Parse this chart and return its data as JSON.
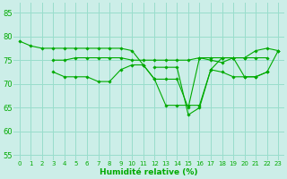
{
  "title": "",
  "xlabel": "Humidité relative (%)",
  "ylabel": "",
  "bg_color": "#cceee8",
  "grid_color": "#99ddcc",
  "line_color": "#00aa00",
  "marker_color": "#00aa00",
  "xlim": [
    -0.5,
    23.5
  ],
  "ylim": [
    54,
    87
  ],
  "yticks": [
    55,
    60,
    65,
    70,
    75,
    80,
    85
  ],
  "xticks": [
    0,
    1,
    2,
    3,
    4,
    5,
    6,
    7,
    8,
    9,
    10,
    11,
    12,
    13,
    14,
    15,
    16,
    17,
    18,
    19,
    20,
    21,
    22,
    23
  ],
  "series": [
    [
      79.0,
      78.0,
      77.5,
      77.5,
      77.5,
      77.5,
      77.5,
      77.5,
      77.5,
      77.5,
      77.0,
      74.0,
      71.0,
      71.0,
      71.0,
      65.0,
      75.5,
      75.0,
      74.5,
      75.5,
      75.5,
      77.0,
      77.5,
      77.0
    ],
    [
      null,
      null,
      null,
      75.0,
      75.0,
      75.5,
      75.5,
      75.5,
      75.5,
      75.5,
      75.0,
      75.0,
      75.0,
      75.0,
      75.0,
      75.0,
      75.5,
      75.5,
      75.5,
      75.5,
      75.5,
      75.5,
      75.5,
      null
    ],
    [
      null,
      null,
      null,
      72.5,
      71.5,
      71.5,
      71.5,
      70.5,
      70.5,
      73.0,
      74.0,
      74.0,
      71.0,
      65.5,
      65.5,
      65.5,
      65.5,
      73.0,
      75.5,
      75.5,
      71.5,
      71.5,
      72.5,
      77.0
    ],
    [
      null,
      null,
      null,
      null,
      null,
      null,
      null,
      null,
      null,
      null,
      null,
      null,
      73.5,
      73.5,
      73.5,
      63.5,
      65.0,
      73.0,
      72.5,
      71.5,
      71.5,
      71.5,
      72.5,
      null
    ]
  ],
  "xlabel_fontsize": 6.5,
  "xtick_fontsize": 5.0,
  "ytick_fontsize": 6.0,
  "linewidth": 0.8,
  "markersize": 1.8
}
